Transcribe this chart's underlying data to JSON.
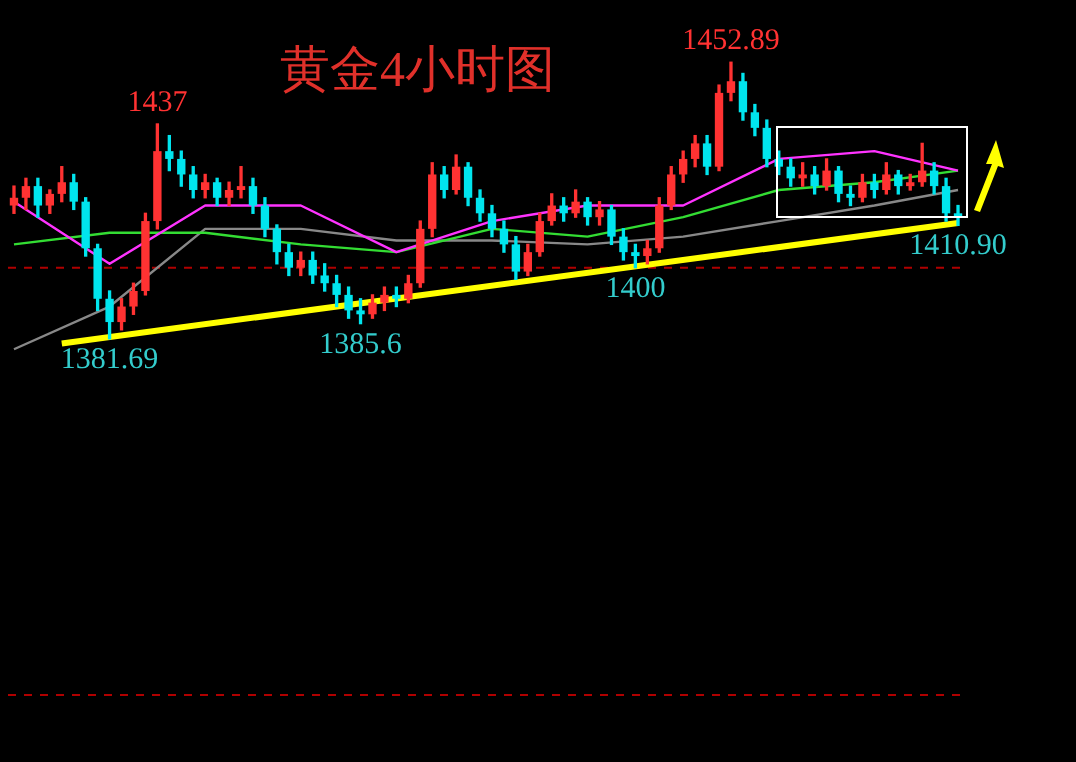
{
  "chart_data": {
    "type": "candlestick",
    "title": "黄金4小时图",
    "categories": [
      null,
      null,
      null,
      null,
      null,
      null,
      null,
      null,
      null,
      null,
      null,
      null,
      null,
      null,
      null,
      null,
      null,
      null,
      null,
      null,
      null,
      null,
      null,
      null,
      null,
      null,
      null,
      null,
      null,
      null,
      null,
      null,
      null,
      null,
      null,
      null,
      null,
      null,
      null,
      null,
      null,
      null,
      null,
      null,
      null,
      null,
      null,
      null,
      null,
      null,
      null,
      null,
      null,
      null,
      null,
      null,
      null,
      null,
      null,
      null,
      null,
      null,
      null,
      null,
      null,
      null,
      null,
      null,
      null,
      null,
      null,
      null,
      null,
      null,
      null,
      null,
      null,
      null,
      null,
      null
    ],
    "ohlc": [
      [
        1416,
        1421,
        1414,
        1418
      ],
      [
        1418,
        1423,
        1415,
        1421
      ],
      [
        1421,
        1423,
        1413,
        1416
      ],
      [
        1416,
        1420,
        1414,
        1419
      ],
      [
        1419,
        1426,
        1417,
        1422
      ],
      [
        1422,
        1424,
        1415,
        1417
      ],
      [
        1417,
        1418,
        1403,
        1405
      ],
      [
        1405,
        1406,
        1389,
        1392
      ],
      [
        1392,
        1394,
        1381.69,
        1386
      ],
      [
        1386,
        1392,
        1384,
        1390
      ],
      [
        1390,
        1396,
        1388,
        1394
      ],
      [
        1394,
        1414,
        1393,
        1412
      ],
      [
        1412,
        1437,
        1410,
        1430
      ],
      [
        1430,
        1434,
        1425,
        1428
      ],
      [
        1428,
        1430,
        1421,
        1424
      ],
      [
        1424,
        1426,
        1418,
        1420
      ],
      [
        1420,
        1424,
        1418,
        1422
      ],
      [
        1422,
        1423,
        1416,
        1418
      ],
      [
        1418,
        1422,
        1416,
        1420
      ],
      [
        1420,
        1426,
        1418,
        1421
      ],
      [
        1421,
        1423,
        1414,
        1416
      ],
      [
        1416,
        1418,
        1408,
        1410
      ],
      [
        1410,
        1411,
        1401,
        1404
      ],
      [
        1404,
        1406,
        1398,
        1400
      ],
      [
        1400,
        1404,
        1398,
        1402
      ],
      [
        1402,
        1404,
        1396,
        1398
      ],
      [
        1398,
        1401,
        1394,
        1396
      ],
      [
        1396,
        1398,
        1390,
        1393
      ],
      [
        1393,
        1395,
        1387,
        1389
      ],
      [
        1389,
        1392,
        1385.6,
        1388
      ],
      [
        1388,
        1393,
        1387,
        1391
      ],
      [
        1391,
        1395,
        1389,
        1393
      ],
      [
        1393,
        1395,
        1390,
        1392
      ],
      [
        1392,
        1398,
        1391,
        1396
      ],
      [
        1396,
        1412,
        1395,
        1410
      ],
      [
        1410,
        1427,
        1408,
        1424
      ],
      [
        1424,
        1426,
        1418,
        1420
      ],
      [
        1420,
        1429,
        1419,
        1426
      ],
      [
        1426,
        1427,
        1416,
        1418
      ],
      [
        1418,
        1420,
        1412,
        1414
      ],
      [
        1414,
        1416,
        1408,
        1410
      ],
      [
        1410,
        1412,
        1404,
        1406
      ],
      [
        1406,
        1408,
        1397,
        1399
      ],
      [
        1399,
        1406,
        1398,
        1404
      ],
      [
        1404,
        1414,
        1403,
        1412
      ],
      [
        1412,
        1419,
        1411,
        1416
      ],
      [
        1416,
        1418,
        1412,
        1414
      ],
      [
        1414,
        1420,
        1413,
        1417
      ],
      [
        1417,
        1418,
        1411,
        1413
      ],
      [
        1413,
        1417,
        1411,
        1415
      ],
      [
        1415,
        1416,
        1406,
        1408
      ],
      [
        1408,
        1410,
        1402,
        1404
      ],
      [
        1404,
        1406,
        1400,
        1403
      ],
      [
        1403,
        1407,
        1401,
        1405
      ],
      [
        1405,
        1418,
        1404,
        1416
      ],
      [
        1416,
        1426,
        1415,
        1424
      ],
      [
        1424,
        1430,
        1422,
        1428
      ],
      [
        1428,
        1434,
        1426,
        1432
      ],
      [
        1432,
        1434,
        1424,
        1426
      ],
      [
        1426,
        1447,
        1425,
        1445
      ],
      [
        1445,
        1452.89,
        1443,
        1448
      ],
      [
        1448,
        1450,
        1438,
        1440
      ],
      [
        1440,
        1442,
        1434,
        1436
      ],
      [
        1436,
        1438,
        1426,
        1428
      ],
      [
        1428,
        1430,
        1424,
        1426
      ],
      [
        1426,
        1428,
        1421,
        1423
      ],
      [
        1423,
        1427,
        1421,
        1424
      ],
      [
        1424,
        1426,
        1419,
        1421
      ],
      [
        1421,
        1428,
        1420,
        1425
      ],
      [
        1425,
        1426,
        1417,
        1419
      ],
      [
        1419,
        1421,
        1416,
        1418
      ],
      [
        1418,
        1424,
        1417,
        1422
      ],
      [
        1422,
        1424,
        1418,
        1420
      ],
      [
        1420,
        1427,
        1419,
        1424
      ],
      [
        1424,
        1425,
        1419,
        1421
      ],
      [
        1421,
        1424,
        1420,
        1422
      ],
      [
        1422,
        1432,
        1421,
        1425
      ],
      [
        1425,
        1427,
        1419,
        1421
      ],
      [
        1421,
        1423,
        1412,
        1414
      ],
      [
        1414,
        1416,
        1410.9,
        1413
      ]
    ],
    "colors": [
      "#ff3232",
      "#ff3232",
      "#00e5ee",
      "#ff3232",
      "#ff3232",
      "#00e5ee",
      "#00e5ee",
      "#00e5ee",
      "#00e5ee",
      "#ff3232",
      "#ff3232",
      "#ff3232",
      "#ff3232",
      "#00e5ee",
      "#00e5ee",
      "#00e5ee",
      "#ff3232",
      "#00e5ee",
      "#ff3232",
      "#ff3232",
      "#00e5ee",
      "#00e5ee",
      "#00e5ee",
      "#00e5ee",
      "#ff3232",
      "#00e5ee",
      "#00e5ee",
      "#00e5ee",
      "#00e5ee",
      "#00e5ee",
      "#ff3232",
      "#ff3232",
      "#00e5ee",
      "#ff3232",
      "#ff3232",
      "#ff3232",
      "#00e5ee",
      "#ff3232",
      "#00e5ee",
      "#00e5ee",
      "#00e5ee",
      "#00e5ee",
      "#00e5ee",
      "#ff3232",
      "#ff3232",
      "#ff3232",
      "#00e5ee",
      "#ff3232",
      "#00e5ee",
      "#ff3232",
      "#00e5ee",
      "#00e5ee",
      "#00e5ee",
      "#ff3232",
      "#ff3232",
      "#ff3232",
      "#ff3232",
      "#ff3232",
      "#00e5ee",
      "#ff3232",
      "#ff3232",
      "#00e5ee",
      "#00e5ee",
      "#00e5ee",
      "#00e5ee",
      "#00e5ee",
      "#ff3232",
      "#00e5ee",
      "#ff3232",
      "#00e5ee",
      "#00e5ee",
      "#ff3232",
      "#00e5ee",
      "#ff3232",
      "#00e5ee",
      "#ff3232",
      "#ff3232",
      "#00e5ee",
      "#00e5ee",
      "#00e5ee"
    ],
    "series": [
      {
        "type": "line",
        "color": "#ff33ff",
        "values": [
          1417,
          null,
          null,
          null,
          null,
          null,
          null,
          null,
          1401,
          null,
          null,
          null,
          null,
          null,
          null,
          null,
          1416,
          null,
          null,
          null,
          null,
          null,
          null,
          null,
          1416,
          null,
          null,
          null,
          null,
          null,
          null,
          null,
          1404,
          null,
          null,
          null,
          null,
          null,
          null,
          null,
          1412,
          null,
          null,
          null,
          null,
          null,
          null,
          null,
          1416,
          null,
          null,
          null,
          null,
          null,
          null,
          null,
          1416,
          null,
          null,
          null,
          null,
          null,
          null,
          null,
          1428,
          null,
          null,
          null,
          null,
          null,
          null,
          null,
          1430,
          null,
          null,
          null,
          null,
          null,
          null,
          1425
        ]
      },
      {
        "type": "line",
        "color": "#33dd33",
        "values": [
          1406,
          null,
          null,
          null,
          null,
          null,
          null,
          null,
          1409,
          null,
          null,
          null,
          null,
          null,
          null,
          null,
          1409,
          null,
          null,
          null,
          null,
          null,
          null,
          null,
          1406,
          null,
          null,
          null,
          null,
          null,
          null,
          null,
          1404,
          null,
          null,
          null,
          null,
          null,
          null,
          null,
          1410,
          null,
          null,
          null,
          null,
          null,
          null,
          null,
          1408,
          null,
          null,
          null,
          null,
          null,
          null,
          null,
          1413,
          null,
          null,
          null,
          null,
          null,
          null,
          null,
          1420,
          null,
          null,
          null,
          null,
          null,
          null,
          null,
          1422,
          null,
          null,
          null,
          null,
          null,
          null,
          1425
        ]
      },
      {
        "type": "line",
        "color": "#888888",
        "values": [
          1379,
          null,
          null,
          null,
          null,
          null,
          null,
          null,
          1390,
          null,
          null,
          null,
          null,
          null,
          null,
          null,
          1410,
          null,
          null,
          null,
          null,
          null,
          null,
          null,
          1410,
          null,
          null,
          null,
          null,
          null,
          null,
          null,
          1407,
          null,
          null,
          null,
          null,
          null,
          null,
          null,
          1407,
          null,
          null,
          null,
          null,
          null,
          null,
          null,
          1406,
          null,
          null,
          null,
          null,
          null,
          null,
          null,
          1408,
          null,
          null,
          null,
          null,
          null,
          null,
          null,
          1412,
          null,
          null,
          null,
          null,
          null,
          null,
          null,
          1416,
          null,
          null,
          null,
          null,
          null,
          null,
          1420
        ]
      },
      {
        "type": "line",
        "color": "#ffff00",
        "values": [
          null,
          null,
          null,
          null,
          1380.5,
          null,
          null,
          null,
          null,
          null,
          null,
          null,
          null,
          null,
          null,
          null,
          null,
          null,
          null,
          null,
          null,
          null,
          null,
          null,
          null,
          null,
          null,
          null,
          null,
          null,
          null,
          null,
          null,
          null,
          null,
          null,
          null,
          null,
          null,
          null,
          null,
          null,
          null,
          null,
          null,
          null,
          null,
          null,
          null,
          null,
          null,
          null,
          null,
          null,
          null,
          null,
          null,
          null,
          null,
          null,
          null,
          null,
          null,
          null,
          null,
          null,
          null,
          null,
          null,
          null,
          null,
          null,
          null,
          null,
          null,
          null,
          null,
          null,
          null,
          1411.5
        ]
      }
    ],
    "ref_lines": [
      {
        "axis": "y",
        "value": 1400,
        "color": "#b00000",
        "line_style": "dashed"
      },
      {
        "axis": "y",
        "value": 1290,
        "color": "#b00000",
        "line_style": "dashed"
      }
    ],
    "annotations": [
      {
        "text": "1437",
        "y": 1437
      },
      {
        "text": "1452.89",
        "y": 1452.89
      },
      {
        "text": "1381.69",
        "y": 1381.69
      },
      {
        "text": "1385.6",
        "y": 1385.6
      },
      {
        "text": "1400",
        "y": 1400
      },
      {
        "text": "1410.90",
        "y": 1410.9
      }
    ],
    "legend": false,
    "tick_labels": false
  }
}
